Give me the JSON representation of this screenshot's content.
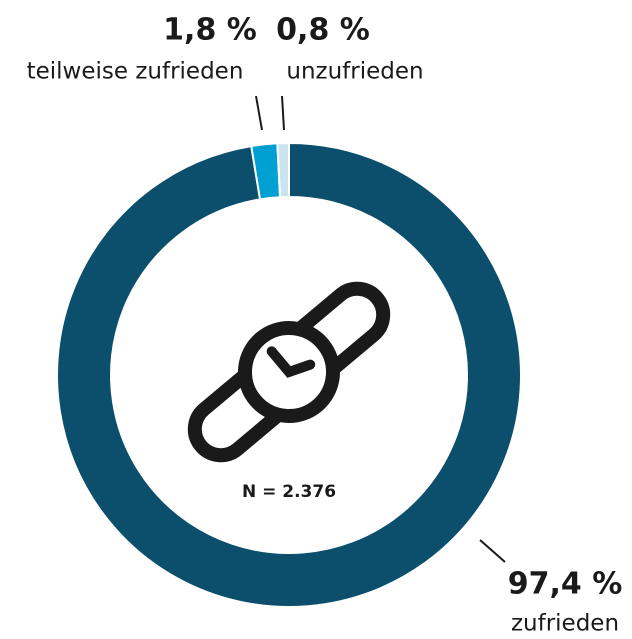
{
  "chart_data": {
    "type": "donut",
    "categories": [
      "zufrieden",
      "teilweise zufrieden",
      "unzufrieden"
    ],
    "values": [
      97.4,
      1.8,
      0.8
    ],
    "value_labels": [
      "97,4 %",
      "1,8 %",
      "0,8 %"
    ],
    "colors": [
      "#0b4f6c",
      "#00a0d2",
      "#c9e3ef"
    ],
    "annotation": "N = 2.376"
  }
}
